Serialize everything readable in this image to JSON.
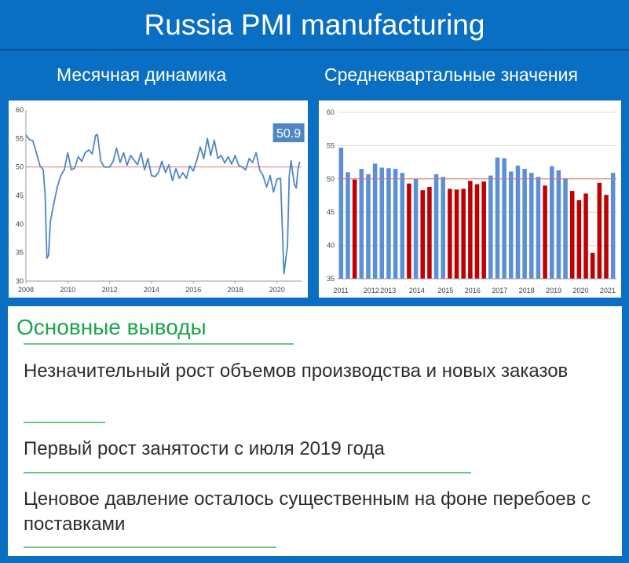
{
  "title": "Russia PMI manufacturing",
  "findings": {
    "heading": "Основные выводы",
    "items": [
      "Незначительный рост объемов производства и новых заказов",
      "Первый рост занятости с июля 2019 года",
      "Ценовое давление осталось существенным на фоне перебоев с поставками"
    ]
  },
  "colors": {
    "background": "#0a6fc2",
    "line": "#4f86c6",
    "bar_above_50": "#5b8fd6",
    "bar_below_50": "#c00000",
    "reference_line": "#e07070",
    "findings_heading": "#1aa64a",
    "underline": "#6cc68a"
  },
  "chart_data": [
    {
      "type": "line",
      "title": "Месячная динамика",
      "ylim": [
        30,
        60
      ],
      "yticks": [
        30,
        35,
        40,
        45,
        50,
        55,
        60
      ],
      "xlim": [
        2008,
        2021.17
      ],
      "xticks": [
        2008,
        2010,
        2012,
        2014,
        2016,
        2018,
        2020
      ],
      "reference_line": 50,
      "callout": "50.9",
      "grid": false,
      "series": [
        {
          "points": [
            [
              2008.0,
              55.6
            ],
            [
              2008.17,
              54.8
            ],
            [
              2008.33,
              54.6
            ],
            [
              2008.5,
              52.5
            ],
            [
              2008.67,
              50.2
            ],
            [
              2008.83,
              49.5
            ],
            [
              2008.92,
              45.0
            ],
            [
              2009.0,
              34.0
            ],
            [
              2009.08,
              34.5
            ],
            [
              2009.17,
              40.5
            ],
            [
              2009.33,
              43.5
            ],
            [
              2009.5,
              46.5
            ],
            [
              2009.67,
              48.5
            ],
            [
              2009.83,
              49.5
            ],
            [
              2010.0,
              52.5
            ],
            [
              2010.17,
              49.5
            ],
            [
              2010.33,
              49.8
            ],
            [
              2010.5,
              51.8
            ],
            [
              2010.67,
              51.0
            ],
            [
              2010.83,
              52.5
            ],
            [
              2011.0,
              53.0
            ],
            [
              2011.17,
              52.3
            ],
            [
              2011.33,
              55.5
            ],
            [
              2011.42,
              55.7
            ],
            [
              2011.58,
              51.0
            ],
            [
              2011.75,
              50.0
            ],
            [
              2012.0,
              50.0
            ],
            [
              2012.17,
              51.0
            ],
            [
              2012.33,
              53.3
            ],
            [
              2012.5,
              50.8
            ],
            [
              2012.67,
              52.5
            ],
            [
              2012.83,
              50.3
            ],
            [
              2013.0,
              52.0
            ],
            [
              2013.17,
              51.2
            ],
            [
              2013.33,
              50.4
            ],
            [
              2013.5,
              52.5
            ],
            [
              2013.67,
              49.5
            ],
            [
              2013.83,
              51.5
            ],
            [
              2014.0,
              48.5
            ],
            [
              2014.17,
              48.3
            ],
            [
              2014.33,
              49.0
            ],
            [
              2014.5,
              51.0
            ],
            [
              2014.67,
              49.0
            ],
            [
              2014.83,
              50.4
            ],
            [
              2015.0,
              47.6
            ],
            [
              2015.17,
              49.7
            ],
            [
              2015.33,
              48.0
            ],
            [
              2015.5,
              49.0
            ],
            [
              2015.67,
              48.0
            ],
            [
              2015.83,
              50.2
            ],
            [
              2016.0,
              49.3
            ],
            [
              2016.17,
              51.2
            ],
            [
              2016.33,
              53.5
            ],
            [
              2016.5,
              51.5
            ],
            [
              2016.67,
              55.0
            ],
            [
              2016.83,
              52.0
            ],
            [
              2017.0,
              54.7
            ],
            [
              2017.17,
              51.5
            ],
            [
              2017.33,
              52.0
            ],
            [
              2017.5,
              50.7
            ],
            [
              2017.67,
              51.8
            ],
            [
              2017.83,
              50.5
            ],
            [
              2018.0,
              52.0
            ],
            [
              2018.17,
              50.3
            ],
            [
              2018.33,
              50.0
            ],
            [
              2018.5,
              49.5
            ],
            [
              2018.67,
              51.5
            ],
            [
              2018.83,
              50.8
            ],
            [
              2019.0,
              52.5
            ],
            [
              2019.17,
              49.5
            ],
            [
              2019.33,
              48.5
            ],
            [
              2019.5,
              46.5
            ],
            [
              2019.67,
              48.5
            ],
            [
              2019.83,
              45.6
            ],
            [
              2020.0,
              47.9
            ],
            [
              2020.17,
              48.0
            ],
            [
              2020.33,
              31.3
            ],
            [
              2020.5,
              36.2
            ],
            [
              2020.58,
              48.4
            ],
            [
              2020.67,
              51.1
            ],
            [
              2020.75,
              48.9
            ],
            [
              2020.83,
              46.9
            ],
            [
              2020.92,
              46.3
            ],
            [
              2021.0,
              49.7
            ],
            [
              2021.08,
              50.9
            ]
          ]
        }
      ]
    },
    {
      "type": "bar",
      "title": "Среднеквартальные значения",
      "ylim": [
        35,
        60
      ],
      "yticks": [
        35,
        40,
        45,
        50,
        55,
        60
      ],
      "xticks": [
        "2011",
        "2012",
        "2013",
        "2014",
        "2015",
        "2016",
        "2017",
        "2018",
        "2019",
        "2020",
        "2021"
      ],
      "reference_line": 50,
      "grid": true,
      "values": [
        54.7,
        51.0,
        49.9,
        51.5,
        50.7,
        52.3,
        51.7,
        51.6,
        51.5,
        50.9,
        49.3,
        50.0,
        48.3,
        48.8,
        50.7,
        50.3,
        48.5,
        48.4,
        48.5,
        49.7,
        49.2,
        49.6,
        50.5,
        53.2,
        53.1,
        51.1,
        52.0,
        51.5,
        50.9,
        50.3,
        49.0,
        51.9,
        51.3,
        50.1,
        48.2,
        46.8,
        47.8,
        38.9,
        49.4,
        47.6,
        50.9
      ]
    }
  ]
}
